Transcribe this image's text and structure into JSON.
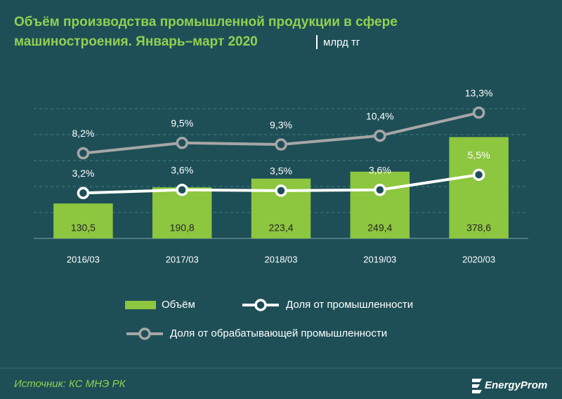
{
  "chart_data": {
    "type": "combo",
    "title": [
      "Объём производства промышленной продукции в сфере",
      "машиностроения. Январь–март 2020"
    ],
    "unit": "млрд тг",
    "categories": [
      "2016/03",
      "2017/03",
      "2018/03",
      "2019/03",
      "2020/03"
    ],
    "series": [
      {
        "name": "Объём",
        "type": "bar",
        "color": "#8dc63f",
        "values": [
          130.5,
          190.8,
          223.4,
          249.4,
          378.6
        ],
        "value_labels": [
          "130,5",
          "190,8",
          "223,4",
          "249,4",
          "378,6"
        ]
      },
      {
        "name": "Доля от промышленности",
        "type": "line",
        "axis": "y2",
        "color": "#ffffff",
        "values": [
          3.2,
          3.6,
          3.5,
          3.6,
          5.5
        ],
        "value_labels": [
          "3,2%",
          "3,6%",
          "3,5%",
          "3,6%",
          "5,5%"
        ]
      },
      {
        "name": "Доля от обрабатывающей промышленности",
        "type": "line",
        "axis": "y2",
        "color": "#a6a6a6",
        "values": [
          8.2,
          9.5,
          9.3,
          10.4,
          13.3
        ],
        "value_labels": [
          "8,2%",
          "9,5%",
          "9,3%",
          "10,4%",
          "13,3%"
        ]
      }
    ],
    "ylim": [
      0,
      550
    ],
    "y2lim": [
      -2.5,
      16
    ],
    "source": "Источник: КС МНЭ РК",
    "brand": "EnergyProm"
  }
}
